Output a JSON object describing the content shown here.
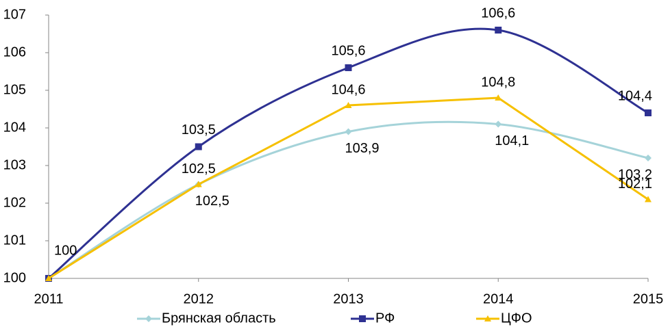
{
  "chart_data": {
    "type": "line",
    "categories": [
      "2011",
      "2012",
      "2013",
      "2014",
      "2015"
    ],
    "series": [
      {
        "name": "Брянская область",
        "color": "#a5d3d9",
        "marker": "diamond",
        "smooth": true,
        "values": [
          100,
          102.5,
          103.9,
          104.1,
          103.2
        ],
        "value_labels": [
          null,
          "102,5",
          "103,9",
          "104,1",
          "103,2"
        ]
      },
      {
        "name": "РФ",
        "color": "#2e3192",
        "marker": "square",
        "smooth": true,
        "values": [
          100,
          103.5,
          105.6,
          106.6,
          104.4
        ],
        "value_labels": [
          "100",
          "103,5",
          "105,6",
          "106,6",
          "104,4"
        ]
      },
      {
        "name": "ЦФО",
        "color": "#f6c000",
        "marker": "triangle",
        "smooth": false,
        "values": [
          100,
          102.5,
          104.6,
          104.8,
          102.1
        ],
        "value_labels": [
          null,
          "102,5",
          "104,6",
          "104,8",
          "102,1"
        ]
      }
    ],
    "ylim": [
      100,
      107
    ],
    "yticks": [
      100,
      101,
      102,
      103,
      104,
      105,
      106,
      107
    ],
    "grid": false,
    "legend": "bottom"
  }
}
